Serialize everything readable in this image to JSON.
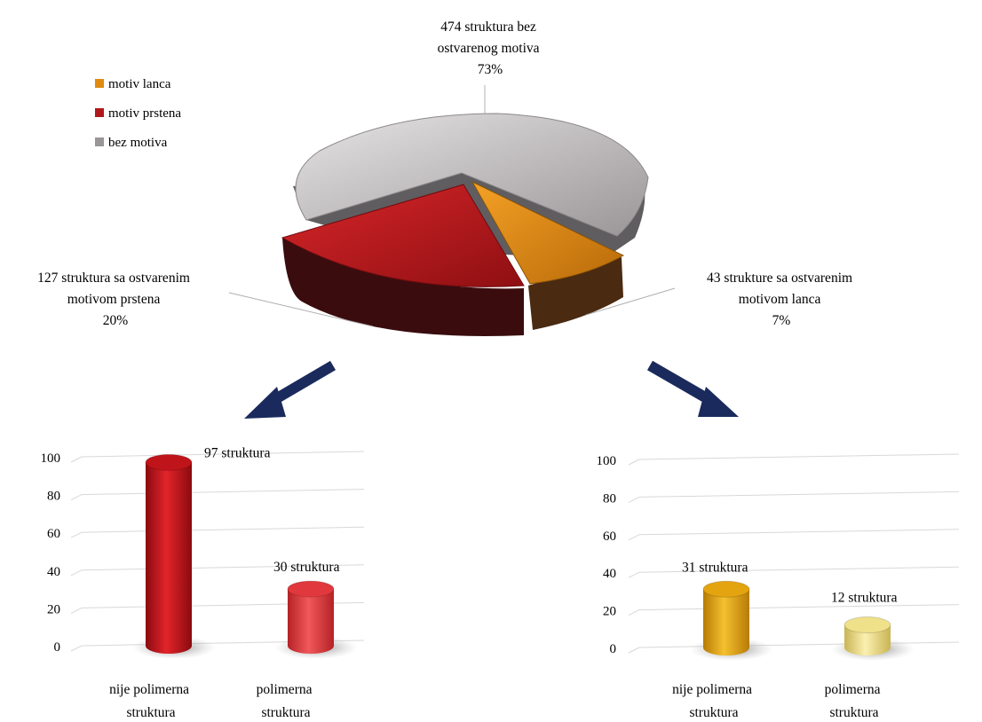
{
  "chart_data": [
    {
      "type": "pie",
      "legend": {
        "placement": "top-left",
        "entries": [
          "motiv lanca",
          "motiv prstena",
          "bez motiva"
        ]
      },
      "slices": [
        {
          "name": "bez motiva",
          "value": 474,
          "percent": "73%",
          "label_lines": [
            "474 struktura bez",
            "ostvarenog motiva",
            "73%"
          ],
          "color": "#a8a4a6"
        },
        {
          "name": "motiv prstena",
          "value": 127,
          "percent": "20%",
          "label_lines": [
            "127 struktura sa ostvarenim",
            "motivom prstena",
            "20%"
          ],
          "color": "#b0181c"
        },
        {
          "name": "motiv lanca",
          "value": 43,
          "percent": "7%",
          "label_lines": [
            "43 strukture  sa ostvarenim",
            "motivom lanca",
            "7%"
          ],
          "color": "#e08a10"
        }
      ]
    },
    {
      "type": "bar",
      "categories": [
        [
          "nije polimerna",
          "struktura"
        ],
        [
          "polimerna",
          "struktura"
        ]
      ],
      "values": [
        97,
        30
      ],
      "data_labels": [
        "97 struktura",
        "30 struktura"
      ],
      "ylim": [
        0,
        100
      ],
      "yticks": [
        "0",
        "20",
        "40",
        "60",
        "80",
        "100"
      ],
      "colors": [
        "#c0141b",
        "#e0383c"
      ]
    },
    {
      "type": "bar",
      "categories": [
        [
          "nije polimerna",
          "struktura"
        ],
        [
          "polimerna",
          "struktura"
        ]
      ],
      "values": [
        31,
        12
      ],
      "data_labels": [
        "31 struktura",
        "12 struktura"
      ],
      "ylim": [
        0,
        100
      ],
      "yticks": [
        "0",
        "20",
        "40",
        "60",
        "80",
        "100"
      ],
      "colors": [
        "#e3a410",
        "#efe08a"
      ]
    }
  ]
}
